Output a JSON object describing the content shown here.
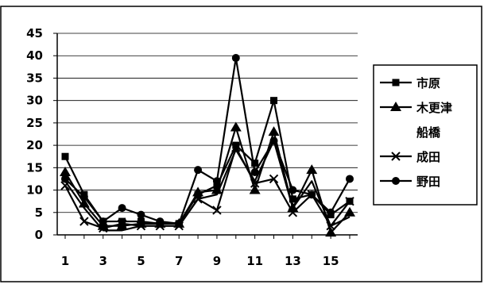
{
  "chart_data": {
    "type": "line",
    "title": "",
    "xlabel": "",
    "ylabel": "",
    "x": [
      1,
      2,
      3,
      4,
      5,
      6,
      7,
      8,
      9,
      10,
      11,
      12,
      13,
      14,
      15,
      16
    ],
    "x_tick_labels": [
      "1",
      "3",
      "5",
      "7",
      "9",
      "11",
      "13",
      "15"
    ],
    "y_tick_labels": [
      "0",
      "5",
      "10",
      "15",
      "20",
      "25",
      "30",
      "35",
      "40",
      "45"
    ],
    "ylim": [
      0,
      45
    ],
    "grid": "horizontal",
    "legend_position": "right",
    "series": [
      {
        "name": "市原",
        "marker": "square",
        "values": [
          17.5,
          9,
          3,
          3,
          3,
          2.5,
          2.5,
          9,
          11,
          20,
          16,
          30,
          8,
          9,
          4.5,
          7.5
        ]
      },
      {
        "name": "木更津",
        "marker": "triangle",
        "values": [
          14,
          7,
          2,
          2,
          2.5,
          2.5,
          2.5,
          9.5,
          10,
          24,
          10,
          23,
          6,
          14.5,
          0.5,
          5
        ]
      },
      {
        "name": "船橋",
        "marker": "none",
        "values": [
          12,
          6,
          1,
          1,
          2,
          2,
          2,
          8,
          9,
          19,
          12,
          21,
          6,
          12,
          2,
          4
        ]
      },
      {
        "name": "成田",
        "marker": "x",
        "values": [
          11,
          3,
          1.5,
          2.5,
          2,
          2,
          2,
          8,
          5.5,
          19.5,
          11.5,
          12.5,
          5,
          9,
          2,
          7.5
        ]
      },
      {
        "name": "野田",
        "marker": "circle",
        "values": [
          12.5,
          8.5,
          3,
          6,
          4.5,
          3,
          2.5,
          14.5,
          12,
          39.5,
          14,
          21,
          10,
          9,
          5,
          12.5
        ]
      }
    ]
  }
}
